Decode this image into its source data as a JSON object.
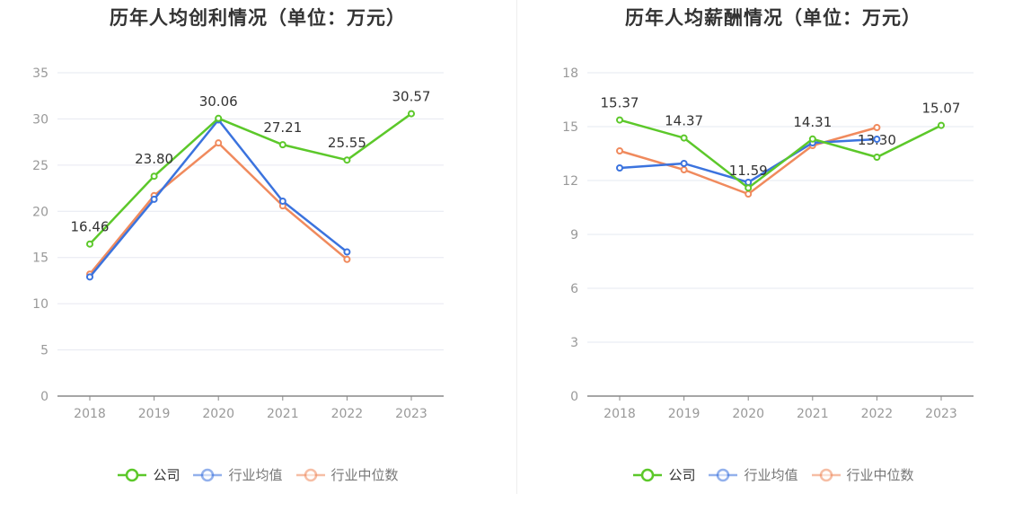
{
  "chart_data": [
    {
      "type": "line",
      "title": "历年人均创利情况（单位：万元）",
      "categories": [
        "2018",
        "2019",
        "2020",
        "2021",
        "2022",
        "2023"
      ],
      "ylim": [
        0,
        35
      ],
      "yticks": [
        0,
        5,
        10,
        15,
        20,
        25,
        30,
        35
      ],
      "series": [
        {
          "name": "公司",
          "color": "#5cc82a",
          "values": [
            16.46,
            23.8,
            30.06,
            27.21,
            25.55,
            30.57
          ],
          "labels": [
            "16.46",
            "23.80",
            "30.06",
            "27.21",
            "25.55",
            "30.57"
          ]
        },
        {
          "name": "行业均值",
          "color": "#3b73de",
          "values": [
            12.9,
            21.3,
            29.9,
            21.1,
            15.6,
            null
          ]
        },
        {
          "name": "行业中位数",
          "color": "#f08a5d",
          "values": [
            13.2,
            21.7,
            27.4,
            20.6,
            14.8,
            null
          ]
        }
      ],
      "legend": "bottom",
      "grid": true
    },
    {
      "type": "line",
      "title": "历年人均薪酬情况（单位：万元）",
      "categories": [
        "2018",
        "2019",
        "2020",
        "2021",
        "2022",
        "2023"
      ],
      "ylim": [
        0,
        18
      ],
      "yticks": [
        0,
        3,
        6,
        9,
        12,
        15,
        18
      ],
      "series": [
        {
          "name": "公司",
          "color": "#5cc82a",
          "values": [
            15.37,
            14.37,
            11.59,
            14.31,
            13.3,
            15.07
          ],
          "labels": [
            "15.37",
            "14.37",
            "11.59",
            "14.31",
            "13.30",
            "15.07"
          ]
        },
        {
          "name": "行业均值",
          "color": "#3b73de",
          "values": [
            12.7,
            12.95,
            11.9,
            14.1,
            14.3,
            null
          ]
        },
        {
          "name": "行业中位数",
          "color": "#f08a5d",
          "values": [
            13.65,
            12.6,
            11.25,
            13.95,
            14.95,
            null
          ]
        }
      ],
      "legend": "bottom",
      "grid": true
    }
  ]
}
